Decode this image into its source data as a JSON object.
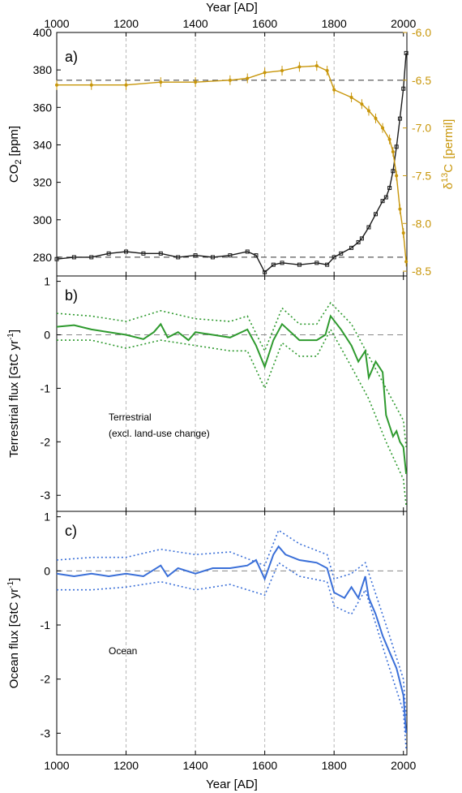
{
  "colors": {
    "co2": "#1a1a1a",
    "d13c": "#c8960a",
    "terrestrial": "#2e9a2e",
    "ocean": "#3a6fd8",
    "grid": "#b8b8b8",
    "refline": "#333333"
  },
  "xaxis": {
    "top_label": "Year [AD]",
    "bottom_label": "Year [AD]",
    "ticks": [
      "1000",
      "1200",
      "1400",
      "1600",
      "1800",
      "2000"
    ]
  },
  "panels": {
    "a": {
      "letter": "a)",
      "ylabel_left_main": "CO",
      "ylabel_left_sub": "2",
      "ylabel_left_unit": "[ppm]",
      "left_ticks": [
        "280",
        "300",
        "320",
        "340",
        "360",
        "380",
        "400"
      ],
      "ylabel_right_pre": "δ",
      "ylabel_right_sup": "13",
      "ylabel_right_main": "C",
      "ylabel_right_unit": "[permil]",
      "right_ticks": [
        "-6.0",
        "-6.5",
        "-7.0",
        "-7.5",
        "-8.0",
        "-8.5"
      ]
    },
    "b": {
      "letter": "b)",
      "ylabel": "Terrestrial flux [GtC yr",
      "ylabel_sup": "-1",
      "ylabel_end": "]",
      "ticks": [
        "1",
        "0",
        "-1",
        "-2",
        "-3"
      ],
      "annotation_line1": "Terrestrial",
      "annotation_line2": "(excl. land-use change)"
    },
    "c": {
      "letter": "c)",
      "ylabel": "Ocean flux [GtC yr",
      "ylabel_sup": "-1",
      "ylabel_end": "]",
      "ticks": [
        "1",
        "0",
        "-1",
        "-2",
        "-3"
      ],
      "annotation": "Ocean"
    }
  },
  "chart_data": [
    {
      "panel": "a",
      "type": "line",
      "xlim": [
        1000,
        2010
      ],
      "ylim": [
        270,
        400
      ],
      "y2lim": [
        -8.55,
        -6.0
      ],
      "y2_inverted": true,
      "x_grid": [
        1200,
        1400,
        1600,
        1800
      ],
      "reference_lines": {
        "co2": 280,
        "d13c": -6.5
      },
      "series": [
        {
          "axis": "left",
          "points": [
            [
              1000,
              279
            ],
            [
              1050,
              280
            ],
            [
              1100,
              280
            ],
            [
              1150,
              282
            ],
            [
              1200,
              283
            ],
            [
              1250,
              282
            ],
            [
              1300,
              282
            ],
            [
              1350,
              280
            ],
            [
              1400,
              281
            ],
            [
              1450,
              280
            ],
            [
              1500,
              281
            ],
            [
              1550,
              283
            ],
            [
              1575,
              281
            ],
            [
              1600,
              272
            ],
            [
              1625,
              276
            ],
            [
              1650,
              277
            ],
            [
              1700,
              276
            ],
            [
              1750,
              277
            ],
            [
              1780,
              276
            ],
            [
              1800,
              280
            ],
            [
              1820,
              282
            ],
            [
              1850,
              285
            ],
            [
              1870,
              288
            ],
            [
              1880,
              290
            ],
            [
              1900,
              296
            ],
            [
              1920,
              303
            ],
            [
              1940,
              310
            ],
            [
              1950,
              312
            ],
            [
              1960,
              317
            ],
            [
              1970,
              326
            ],
            [
              1980,
              339
            ],
            [
              1990,
              354
            ],
            [
              2000,
              370
            ],
            [
              2008,
              389
            ]
          ]
        },
        {
          "axis": "right",
          "points": [
            [
              1000,
              -6.55
            ],
            [
              1100,
              -6.55
            ],
            [
              1200,
              -6.55
            ],
            [
              1300,
              -6.52
            ],
            [
              1400,
              -6.52
            ],
            [
              1500,
              -6.5
            ],
            [
              1550,
              -6.48
            ],
            [
              1600,
              -6.42
            ],
            [
              1650,
              -6.4
            ],
            [
              1700,
              -6.36
            ],
            [
              1750,
              -6.35
            ],
            [
              1780,
              -6.4
            ],
            [
              1800,
              -6.6
            ],
            [
              1850,
              -6.68
            ],
            [
              1880,
              -6.75
            ],
            [
              1900,
              -6.82
            ],
            [
              1920,
              -6.9
            ],
            [
              1940,
              -7.0
            ],
            [
              1960,
              -7.12
            ],
            [
              1970,
              -7.25
            ],
            [
              1980,
              -7.5
            ],
            [
              1990,
              -7.85
            ],
            [
              2000,
              -8.1
            ],
            [
              2008,
              -8.4
            ]
          ]
        }
      ]
    },
    {
      "panel": "b",
      "type": "line",
      "xlim": [
        1000,
        2010
      ],
      "ylim": [
        -3.3,
        1.1
      ],
      "x_grid": [
        1200,
        1400,
        1600,
        1800
      ],
      "reference_line": 0,
      "series": [
        {
          "style": "solid",
          "points": [
            [
              1000,
              0.15
            ],
            [
              1050,
              0.18
            ],
            [
              1100,
              0.1
            ],
            [
              1150,
              0.05
            ],
            [
              1200,
              0.0
            ],
            [
              1250,
              -0.08
            ],
            [
              1280,
              0.05
            ],
            [
              1300,
              0.2
            ],
            [
              1320,
              -0.05
            ],
            [
              1350,
              0.05
            ],
            [
              1380,
              -0.1
            ],
            [
              1400,
              0.05
            ],
            [
              1450,
              0.0
            ],
            [
              1500,
              -0.05
            ],
            [
              1550,
              0.1
            ],
            [
              1575,
              -0.2
            ],
            [
              1600,
              -0.6
            ],
            [
              1625,
              -0.1
            ],
            [
              1650,
              0.2
            ],
            [
              1700,
              -0.1
            ],
            [
              1750,
              -0.1
            ],
            [
              1775,
              0.0
            ],
            [
              1790,
              0.35
            ],
            [
              1820,
              0.1
            ],
            [
              1850,
              -0.2
            ],
            [
              1870,
              -0.5
            ],
            [
              1890,
              -0.3
            ],
            [
              1900,
              -0.8
            ],
            [
              1920,
              -0.5
            ],
            [
              1940,
              -0.7
            ],
            [
              1950,
              -1.5
            ],
            [
              1960,
              -1.7
            ],
            [
              1970,
              -1.9
            ],
            [
              1980,
              -1.8
            ],
            [
              1990,
              -2.0
            ],
            [
              2000,
              -2.1
            ],
            [
              2008,
              -2.6
            ]
          ]
        },
        {
          "style": "dotted",
          "points": [
            [
              1000,
              0.4
            ],
            [
              1100,
              0.35
            ],
            [
              1200,
              0.25
            ],
            [
              1300,
              0.45
            ],
            [
              1400,
              0.3
            ],
            [
              1500,
              0.25
            ],
            [
              1550,
              0.35
            ],
            [
              1600,
              -0.3
            ],
            [
              1650,
              0.5
            ],
            [
              1700,
              0.2
            ],
            [
              1750,
              0.2
            ],
            [
              1790,
              0.6
            ],
            [
              1850,
              0.2
            ],
            [
              1900,
              -0.4
            ],
            [
              1950,
              -1.0
            ],
            [
              2000,
              -1.6
            ],
            [
              2008,
              -2.1
            ]
          ]
        },
        {
          "style": "dotted",
          "points": [
            [
              1000,
              -0.1
            ],
            [
              1100,
              -0.1
            ],
            [
              1200,
              -0.25
            ],
            [
              1300,
              -0.1
            ],
            [
              1400,
              -0.2
            ],
            [
              1500,
              -0.3
            ],
            [
              1550,
              -0.3
            ],
            [
              1600,
              -1.0
            ],
            [
              1650,
              -0.15
            ],
            [
              1700,
              -0.4
            ],
            [
              1750,
              -0.4
            ],
            [
              1790,
              0.1
            ],
            [
              1850,
              -0.6
            ],
            [
              1900,
              -1.2
            ],
            [
              1950,
              -2.0
            ],
            [
              2000,
              -2.7
            ],
            [
              2008,
              -3.2
            ]
          ]
        }
      ]
    },
    {
      "panel": "c",
      "type": "line",
      "xlim": [
        1000,
        2010
      ],
      "ylim": [
        -3.4,
        1.1
      ],
      "x_grid": [
        1200,
        1400,
        1600,
        1800
      ],
      "reference_line": 0,
      "series": [
        {
          "style": "solid",
          "points": [
            [
              1000,
              -0.05
            ],
            [
              1050,
              -0.1
            ],
            [
              1100,
              -0.05
            ],
            [
              1150,
              -0.1
            ],
            [
              1200,
              -0.05
            ],
            [
              1250,
              -0.1
            ],
            [
              1300,
              0.1
            ],
            [
              1320,
              -0.1
            ],
            [
              1350,
              0.05
            ],
            [
              1400,
              -0.05
            ],
            [
              1450,
              0.05
            ],
            [
              1500,
              0.05
            ],
            [
              1550,
              0.1
            ],
            [
              1575,
              0.2
            ],
            [
              1600,
              -0.15
            ],
            [
              1625,
              0.3
            ],
            [
              1640,
              0.45
            ],
            [
              1660,
              0.3
            ],
            [
              1700,
              0.2
            ],
            [
              1750,
              0.15
            ],
            [
              1780,
              0.05
            ],
            [
              1800,
              -0.4
            ],
            [
              1830,
              -0.5
            ],
            [
              1850,
              -0.3
            ],
            [
              1870,
              -0.5
            ],
            [
              1890,
              -0.1
            ],
            [
              1900,
              -0.5
            ],
            [
              1920,
              -0.8
            ],
            [
              1940,
              -1.2
            ],
            [
              1960,
              -1.5
            ],
            [
              1980,
              -1.8
            ],
            [
              2000,
              -2.3
            ],
            [
              2008,
              -3.0
            ]
          ]
        },
        {
          "style": "dotted",
          "points": [
            [
              1000,
              0.2
            ],
            [
              1100,
              0.25
            ],
            [
              1200,
              0.25
            ],
            [
              1300,
              0.4
            ],
            [
              1400,
              0.3
            ],
            [
              1500,
              0.35
            ],
            [
              1600,
              0.1
            ],
            [
              1640,
              0.75
            ],
            [
              1700,
              0.5
            ],
            [
              1780,
              0.3
            ],
            [
              1800,
              -0.15
            ],
            [
              1850,
              -0.05
            ],
            [
              1890,
              0.15
            ],
            [
              1950,
              -1.0
            ],
            [
              2000,
              -2.0
            ],
            [
              2008,
              -2.7
            ]
          ]
        },
        {
          "style": "dotted",
          "points": [
            [
              1000,
              -0.35
            ],
            [
              1100,
              -0.35
            ],
            [
              1200,
              -0.3
            ],
            [
              1300,
              -0.2
            ],
            [
              1400,
              -0.35
            ],
            [
              1500,
              -0.25
            ],
            [
              1600,
              -0.45
            ],
            [
              1640,
              0.15
            ],
            [
              1700,
              -0.1
            ],
            [
              1780,
              -0.2
            ],
            [
              1800,
              -0.65
            ],
            [
              1850,
              -0.8
            ],
            [
              1890,
              -0.35
            ],
            [
              1950,
              -1.6
            ],
            [
              2000,
              -2.6
            ],
            [
              2008,
              -3.3
            ]
          ]
        }
      ]
    }
  ]
}
